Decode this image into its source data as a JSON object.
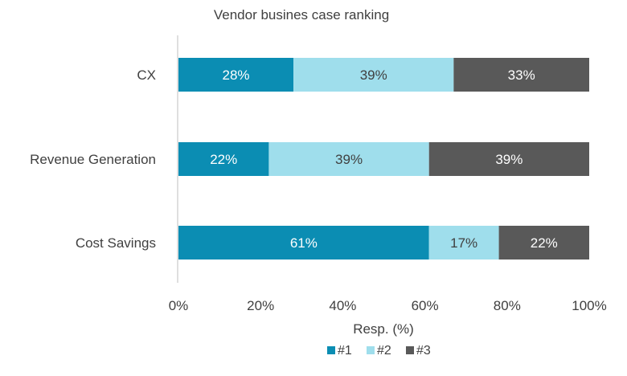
{
  "chart_data": {
    "type": "bar",
    "orientation": "horizontal",
    "stacked": true,
    "title": "Vendor busines case ranking",
    "xlabel": "Resp. (%)",
    "ylabel": "",
    "xlim": [
      0,
      100
    ],
    "x_ticks": [
      "0%",
      "20%",
      "40%",
      "60%",
      "80%",
      "100%"
    ],
    "categories": [
      "CX",
      "Revenue Generation",
      "Cost Savings"
    ],
    "series": [
      {
        "name": "#1",
        "color": "#0b8db3",
        "values": [
          28,
          22,
          61
        ],
        "labels": [
          "28%",
          "22%",
          "61%"
        ],
        "label_color": "#ffffff"
      },
      {
        "name": "#2",
        "color": "#9fdeec",
        "values": [
          39,
          39,
          17
        ],
        "labels": [
          "39%",
          "39%",
          "17%"
        ],
        "label_color": "#404040"
      },
      {
        "name": "#3",
        "color": "#595959",
        "values": [
          33,
          39,
          22
        ],
        "labels": [
          "33%",
          "39%",
          "22%"
        ],
        "label_color": "#ffffff"
      }
    ],
    "grid": false,
    "legend_position": "bottom"
  }
}
